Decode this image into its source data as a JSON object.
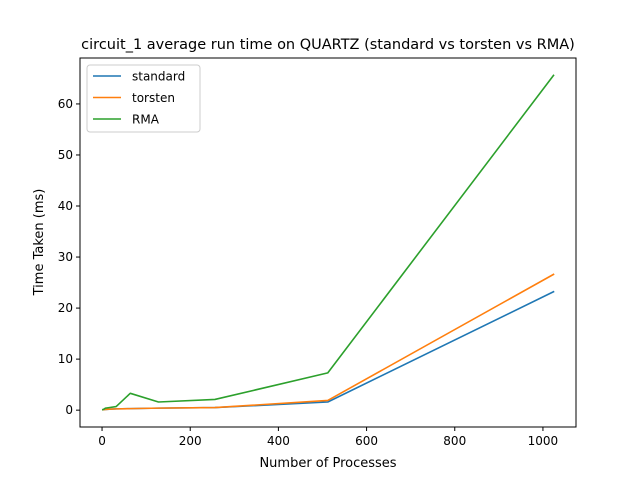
{
  "chart_data": {
    "type": "line",
    "title": "circuit_1 average run time on QUARTZ (standard vs torsten vs RMA)",
    "xlabel": "Number of Processes",
    "ylabel": "Time Taken (ms)",
    "xlim": [
      -50,
      1075
    ],
    "ylim": [
      -3.3,
      69
    ],
    "xticks": [
      0,
      200,
      400,
      600,
      800,
      1000
    ],
    "yticks": [
      0,
      10,
      20,
      30,
      40,
      50,
      60
    ],
    "grid": false,
    "legend_position": "top-left",
    "series": [
      {
        "name": "standard",
        "color": "#1f77b4",
        "x": [
          2,
          4,
          8,
          16,
          32,
          64,
          128,
          256,
          512,
          1024
        ],
        "y": [
          0.1,
          0.1,
          0.15,
          0.2,
          0.25,
          0.3,
          0.4,
          0.5,
          1.6,
          23.2
        ]
      },
      {
        "name": "torsten",
        "color": "#ff7f0e",
        "x": [
          2,
          4,
          8,
          16,
          32,
          64,
          128,
          256,
          512,
          1024
        ],
        "y": [
          0.1,
          0.1,
          0.15,
          0.2,
          0.25,
          0.3,
          0.4,
          0.5,
          1.9,
          26.6
        ]
      },
      {
        "name": "RMA",
        "color": "#2ca02c",
        "x": [
          2,
          4,
          8,
          16,
          32,
          64,
          128,
          256,
          512,
          1024
        ],
        "y": [
          0.1,
          0.2,
          0.4,
          0.5,
          0.7,
          3.3,
          1.6,
          2.1,
          7.3,
          65.6
        ]
      }
    ]
  }
}
